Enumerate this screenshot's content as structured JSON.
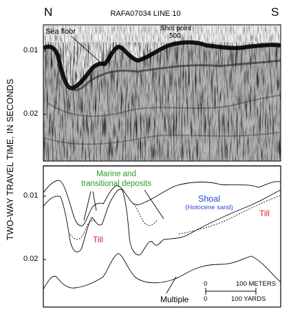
{
  "header": {
    "north_label": "N",
    "south_label": "S",
    "title": "RAFA07034 LINE 10"
  },
  "axis": {
    "y_label": "TWO-WAY TRAVEL TIME, IN SECONDS",
    "upper_ticks": [
      "0.01",
      "0.02"
    ],
    "lower_ticks": [
      "0.01",
      "0.02"
    ]
  },
  "upper_panel": {
    "sea_floor_label": "Sea floor",
    "shot_point_label": "Shot point",
    "shot_point_value": "500"
  },
  "lower_panel": {
    "marine_label_line1": "Marine and",
    "marine_label_line2": "transitional deposits",
    "shoal_label": "Shoal",
    "shoal_sublabel": "(Holocene sand)",
    "till_left": "Till",
    "till_right": "Till",
    "multiple_label": "Multiple"
  },
  "scale_bar": {
    "zero_top": "0",
    "meters_label": "100 METERS",
    "zero_bottom": "0",
    "yards_label": "100 YARDS"
  },
  "colors": {
    "marine_label": "#2a9b25",
    "shoal_label": "#2a4bd6",
    "till_label": "#d6262b"
  }
}
